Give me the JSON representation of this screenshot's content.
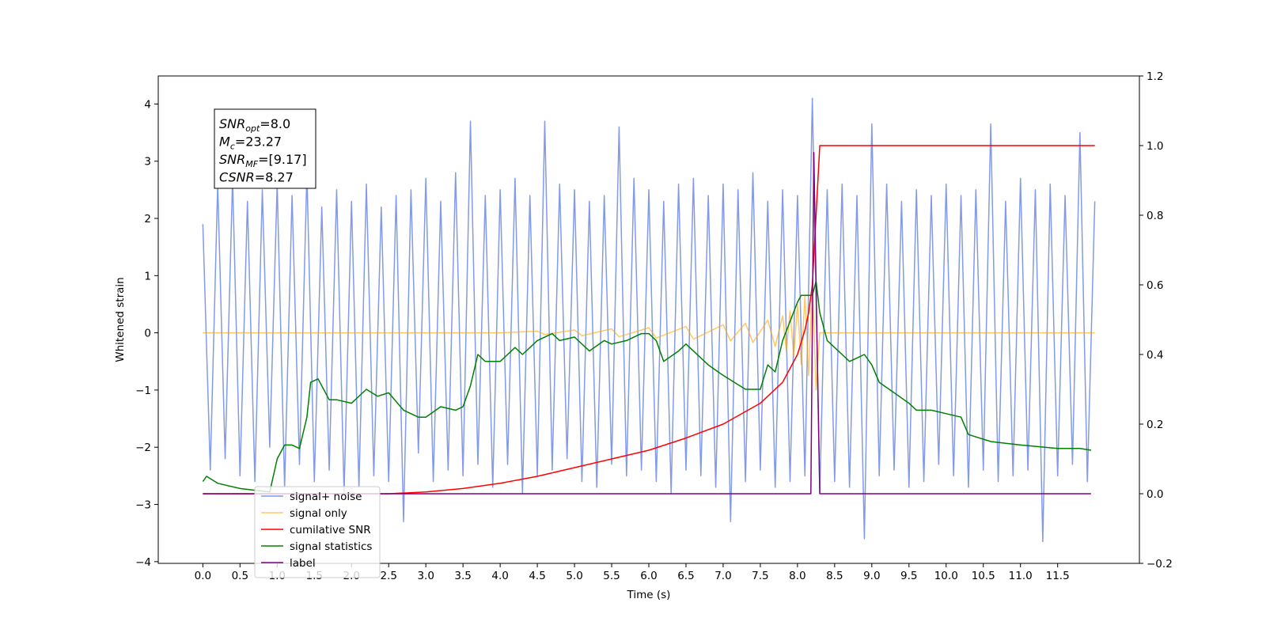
{
  "chart_data": {
    "type": "line",
    "xlabel": "Time (s)",
    "ylabel": "Whitened strain",
    "xlim": [
      -0.6,
      12.6
    ],
    "ylim": [
      -4.03,
      4.49
    ],
    "y2lim": [
      -0.2,
      1.2
    ],
    "xticks": [
      {
        "value": 0,
        "label": "0.0"
      },
      0.5,
      {
        "value": 1,
        "label": "1.0"
      },
      1.5,
      {
        "value": 2,
        "label": "2.0"
      },
      2.5,
      {
        "value": 3,
        "label": "3.0"
      },
      3.5,
      {
        "value": 4,
        "label": "4.0"
      },
      4.5,
      {
        "value": 5,
        "label": "5.0"
      },
      5.5,
      {
        "value": 6,
        "label": "6.0"
      },
      6.5,
      {
        "value": 7,
        "label": "7.0"
      },
      7.5,
      {
        "value": 8,
        "label": "8.0"
      },
      8.5,
      {
        "value": 9,
        "label": "9.0"
      },
      9.5,
      {
        "value": 10,
        "label": "10.0"
      },
      10.5,
      {
        "value": 11,
        "label": "11.0"
      },
      11.5
    ],
    "yticks": [
      {
        "value": -4,
        "label": "−4"
      },
      {
        "value": -3,
        "label": "−3"
      },
      {
        "value": -2,
        "label": "−2"
      },
      {
        "value": -1,
        "label": "−1"
      },
      0,
      1,
      2,
      3,
      4
    ],
    "y2ticks": [
      {
        "value": -0.2,
        "label": "−0.2"
      },
      {
        "value": 0,
        "label": "0.0"
      },
      0.2,
      0.4,
      0.6,
      0.8,
      {
        "value": 1,
        "label": "1.0"
      },
      1.2
    ],
    "legend": "lower left",
    "annotation": [
      {
        "text": "SNR",
        "sub": "opt",
        "rest": "=8.0"
      },
      {
        "text": "M",
        "sub": "c",
        "rest": "=23.27"
      },
      {
        "text": "SNR",
        "sub": "MF",
        "rest": "=[9.17]"
      },
      {
        "text": "CSNR",
        "rest": "=8.27"
      }
    ],
    "series": [
      {
        "name": "signal+ noise",
        "color": "#7b95e6",
        "axis": "y",
        "x": [
          0,
          0.1,
          0.2,
          0.3,
          0.4,
          0.5,
          0.6,
          0.7,
          0.8,
          0.9,
          1,
          1.1,
          1.2,
          1.3,
          1.4,
          1.5,
          1.6,
          1.7,
          1.8,
          1.9,
          2,
          2.1,
          2.2,
          2.3,
          2.4,
          2.5,
          2.6,
          2.7,
          2.8,
          2.9,
          3,
          3.1,
          3.2,
          3.3,
          3.4,
          3.5,
          3.6,
          3.7,
          3.8,
          3.9,
          4,
          4.1,
          4.2,
          4.3,
          4.4,
          4.5,
          4.6,
          4.7,
          4.8,
          4.9,
          5,
          5.1,
          5.2,
          5.3,
          5.4,
          5.5,
          5.6,
          5.7,
          5.8,
          5.9,
          6,
          6.1,
          6.2,
          6.3,
          6.4,
          6.5,
          6.6,
          6.7,
          6.8,
          6.9,
          7,
          7.1,
          7.2,
          7.3,
          7.4,
          7.5,
          7.6,
          7.7,
          7.8,
          7.9,
          8,
          8.1,
          8.2,
          8.3,
          8.4,
          8.5,
          8.6,
          8.7,
          8.8,
          8.9,
          9,
          9.1,
          9.2,
          9.3,
          9.4,
          9.5,
          9.6,
          9.7,
          9.8,
          9.9,
          10,
          10.1,
          10.2,
          10.3,
          10.4,
          10.5,
          10.6,
          10.7,
          10.8,
          10.9,
          11,
          11.1,
          11.2,
          11.3,
          11.4,
          11.5,
          11.6,
          11.7,
          11.8,
          11.9,
          12
        ],
        "values": [
          1.9,
          -2.4,
          2.6,
          -2.2,
          2.7,
          -2.5,
          2.3,
          -2.6,
          2.5,
          -2.0,
          2.6,
          -2.7,
          2.4,
          -2.3,
          2.8,
          -2.6,
          2.2,
          -2.4,
          2.5,
          -2.8,
          2.3,
          -2.7,
          2.6,
          -2.5,
          2.2,
          -2.6,
          2.4,
          -3.3,
          2.5,
          -2.1,
          2.7,
          -2.6,
          2.3,
          -2.4,
          2.8,
          -2.5,
          3.7,
          -2.3,
          2.4,
          -2.7,
          2.5,
          -2.3,
          2.7,
          -2.8,
          2.4,
          -2.5,
          3.7,
          -2.4,
          2.6,
          -2.2,
          2.5,
          -2.6,
          2.3,
          -2.7,
          2.4,
          -2.3,
          3.6,
          -2.5,
          2.7,
          -2.4,
          2.5,
          -2.6,
          2.3,
          -2.8,
          2.6,
          -2.4,
          2.7,
          -2.5,
          2.4,
          -2.7,
          2.6,
          -3.3,
          2.5,
          -2.6,
          2.8,
          -2.4,
          2.3,
          -2.7,
          2.5,
          -2.6,
          2.4,
          -2.5,
          4.1,
          -2.8,
          2.5,
          -2.6,
          2.6,
          -2.7,
          2.4,
          -3.6,
          3.65,
          -2.5,
          2.6,
          -2.4,
          2.3,
          -2.7,
          2.5,
          -2.6,
          2.4,
          -2.3,
          2.6,
          -2.5,
          2.4,
          -2.7,
          2.5,
          -2.4,
          3.65,
          -2.6,
          2.3,
          -2.5,
          2.7,
          -2.4,
          2.5,
          -3.65,
          2.6,
          -2.5,
          2.4,
          -2.3,
          3.5,
          -2.6,
          2.3
        ]
      },
      {
        "name": "signal only",
        "color": "#ffa500",
        "axis": "y",
        "x": [
          0,
          4.0,
          4.5,
          4.6,
          5.0,
          5.1,
          5.5,
          5.6,
          6.0,
          6.1,
          6.5,
          6.6,
          7.0,
          7.1,
          7.3,
          7.4,
          7.6,
          7.7,
          7.8,
          7.85,
          7.9,
          7.95,
          8.0,
          8.05,
          8.1,
          8.15,
          8.2,
          8.25,
          8.3,
          12.0
        ],
        "values": [
          0,
          0,
          0.03,
          -0.03,
          0.05,
          -0.05,
          0.07,
          -0.07,
          0.09,
          -0.09,
          0.11,
          -0.11,
          0.14,
          -0.14,
          0.17,
          -0.17,
          0.22,
          -0.24,
          0.3,
          -0.32,
          0.38,
          -0.42,
          0.5,
          -0.55,
          0.65,
          -0.75,
          0.9,
          -1.0,
          0,
          0
        ]
      },
      {
        "name": "cumilative SNR",
        "color": "#ff0000",
        "axis": "y2",
        "x": [
          0,
          2.5,
          3.0,
          3.5,
          4.0,
          4.5,
          5.0,
          5.5,
          6.0,
          6.5,
          7.0,
          7.5,
          7.8,
          8.0,
          8.1,
          8.15,
          8.2,
          8.25,
          8.3,
          12.0
        ],
        "values": [
          0,
          0,
          0.005,
          0.015,
          0.03,
          0.05,
          0.075,
          0.1,
          0.125,
          0.16,
          0.2,
          0.26,
          0.32,
          0.4,
          0.47,
          0.52,
          0.6,
          0.8,
          1.0,
          1.0
        ]
      },
      {
        "name": "signal statistics",
        "color": "#008000",
        "axis": "y2",
        "x": [
          0,
          0.05,
          0.2,
          0.5,
          0.7,
          0.9,
          1.0,
          1.1,
          1.2,
          1.3,
          1.4,
          1.45,
          1.55,
          1.7,
          1.8,
          2.0,
          2.2,
          2.35,
          2.5,
          2.7,
          2.9,
          3.0,
          3.2,
          3.4,
          3.5,
          3.6,
          3.7,
          3.8,
          4.0,
          4.2,
          4.3,
          4.5,
          4.7,
          4.8,
          5.0,
          5.2,
          5.4,
          5.5,
          5.7,
          5.9,
          6.0,
          6.1,
          6.2,
          6.4,
          6.5,
          6.6,
          6.8,
          7.0,
          7.3,
          7.5,
          7.6,
          7.7,
          7.8,
          8.0,
          8.05,
          8.2,
          8.25,
          8.3,
          8.4,
          8.5,
          8.6,
          8.7,
          8.8,
          8.9,
          9.0,
          9.1,
          9.3,
          9.5,
          9.6,
          9.8,
          10.0,
          10.2,
          10.3,
          10.6,
          11.0,
          11.5,
          11.8,
          11.95
        ],
        "values": [
          0.035,
          0.05,
          0.03,
          0.015,
          0.01,
          0.005,
          0.1,
          0.14,
          0.14,
          0.13,
          0.22,
          0.32,
          0.33,
          0.27,
          0.27,
          0.26,
          0.3,
          0.28,
          0.29,
          0.24,
          0.22,
          0.22,
          0.25,
          0.24,
          0.25,
          0.31,
          0.4,
          0.38,
          0.38,
          0.42,
          0.4,
          0.44,
          0.46,
          0.44,
          0.45,
          0.41,
          0.44,
          0.43,
          0.44,
          0.46,
          0.46,
          0.44,
          0.38,
          0.41,
          0.43,
          0.41,
          0.37,
          0.34,
          0.3,
          0.3,
          0.37,
          0.35,
          0.44,
          0.55,
          0.57,
          0.57,
          0.61,
          0.52,
          0.44,
          0.42,
          0.4,
          0.38,
          0.39,
          0.4,
          0.37,
          0.32,
          0.29,
          0.26,
          0.24,
          0.24,
          0.23,
          0.22,
          0.17,
          0.15,
          0.14,
          0.13,
          0.13,
          0.125
        ]
      },
      {
        "name": "label",
        "color": "#800080",
        "axis": "y2",
        "x": [
          0,
          8.18,
          8.22,
          8.25,
          8.3,
          11.95
        ],
        "values": [
          0,
          0,
          0.98,
          0.6,
          0,
          0
        ]
      }
    ]
  }
}
